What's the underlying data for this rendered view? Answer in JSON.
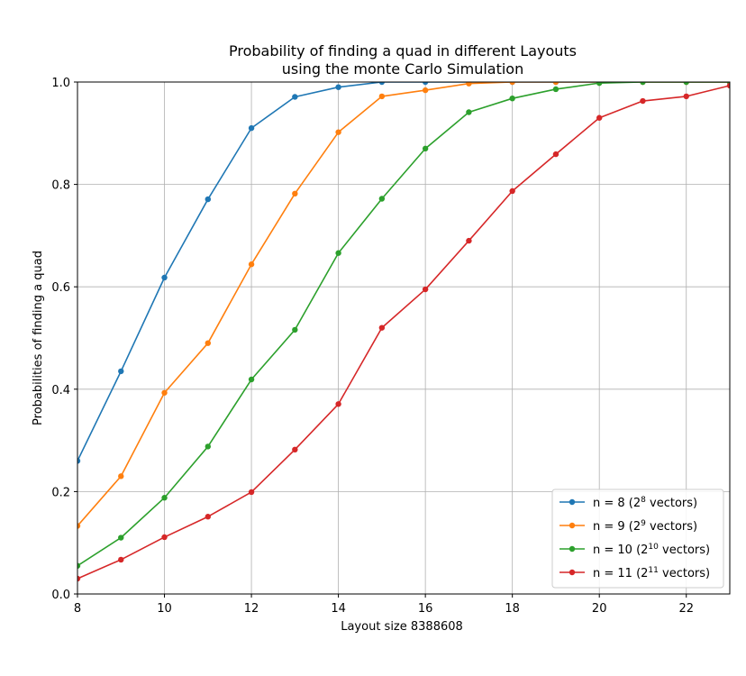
{
  "chart_data": {
    "type": "line",
    "title_line1": "Probability of finding a quad in different Layouts",
    "title_line2": "using the monte Carlo Simulation",
    "xlabel": "Layout size 8388608",
    "ylabel": "Probabilities of finding a quad",
    "xlim": [
      8,
      23
    ],
    "ylim": [
      0,
      1.0
    ],
    "xticks": [
      8,
      10,
      12,
      14,
      16,
      18,
      20,
      22
    ],
    "yticks": [
      0.0,
      0.2,
      0.4,
      0.6,
      0.8,
      1.0
    ],
    "grid": true,
    "legend_position": "lower-right",
    "series": [
      {
        "name_prefix": "n = 8 (2",
        "name_exp": "8",
        "name_suffix": " vectors)",
        "color": "#1f77b4",
        "x": [
          8,
          9,
          10,
          11,
          12,
          13,
          14,
          15,
          16,
          17,
          18,
          19,
          20,
          21,
          22,
          23
        ],
        "y": [
          0.26,
          0.435,
          0.618,
          0.771,
          0.91,
          0.971,
          0.99,
          1.0,
          1.0,
          1.0,
          1.0,
          1.0,
          1.0,
          1.0,
          1.0,
          1.0
        ]
      },
      {
        "name_prefix": "n = 9 (2",
        "name_exp": "9",
        "name_suffix": " vectors)",
        "color": "#ff7f0e",
        "x": [
          8,
          9,
          10,
          11,
          12,
          13,
          14,
          15,
          16,
          17,
          18,
          19,
          20,
          21,
          22,
          23
        ],
        "y": [
          0.133,
          0.23,
          0.393,
          0.49,
          0.644,
          0.782,
          0.902,
          0.972,
          0.984,
          0.997,
          1.0,
          1.0,
          1.0,
          1.0,
          1.0,
          1.0
        ]
      },
      {
        "name_prefix": "n = 10 (2",
        "name_exp": "10",
        "name_suffix": " vectors)",
        "color": "#2ca02c",
        "x": [
          8,
          9,
          10,
          11,
          12,
          13,
          14,
          15,
          16,
          17,
          18,
          19,
          20,
          21,
          22,
          23
        ],
        "y": [
          0.055,
          0.11,
          0.188,
          0.288,
          0.419,
          0.516,
          0.666,
          0.772,
          0.87,
          0.941,
          0.968,
          0.986,
          0.998,
          1.0,
          1.0,
          1.0
        ]
      },
      {
        "name_prefix": "n = 11 (2",
        "name_exp": "11",
        "name_suffix": " vectors)",
        "color": "#d62728",
        "x": [
          8,
          9,
          10,
          11,
          12,
          13,
          14,
          15,
          16,
          17,
          18,
          19,
          20,
          21,
          22,
          23
        ],
        "y": [
          0.03,
          0.067,
          0.111,
          0.151,
          0.199,
          0.282,
          0.371,
          0.52,
          0.595,
          0.69,
          0.787,
          0.859,
          0.93,
          0.963,
          0.972,
          0.993
        ]
      }
    ]
  }
}
